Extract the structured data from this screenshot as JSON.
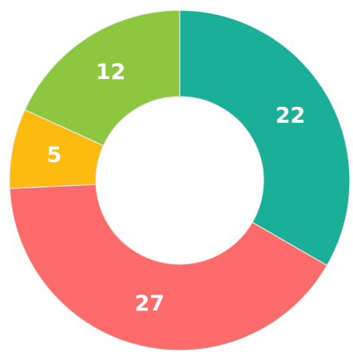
{
  "chart_data": {
    "type": "donut",
    "values": [
      22,
      27,
      5,
      12
    ],
    "colors": [
      "#1aaf98",
      "#fe6b6b",
      "#fdbb10",
      "#8dc63f"
    ],
    "start_angle": 0,
    "direction": "clockwise"
  }
}
